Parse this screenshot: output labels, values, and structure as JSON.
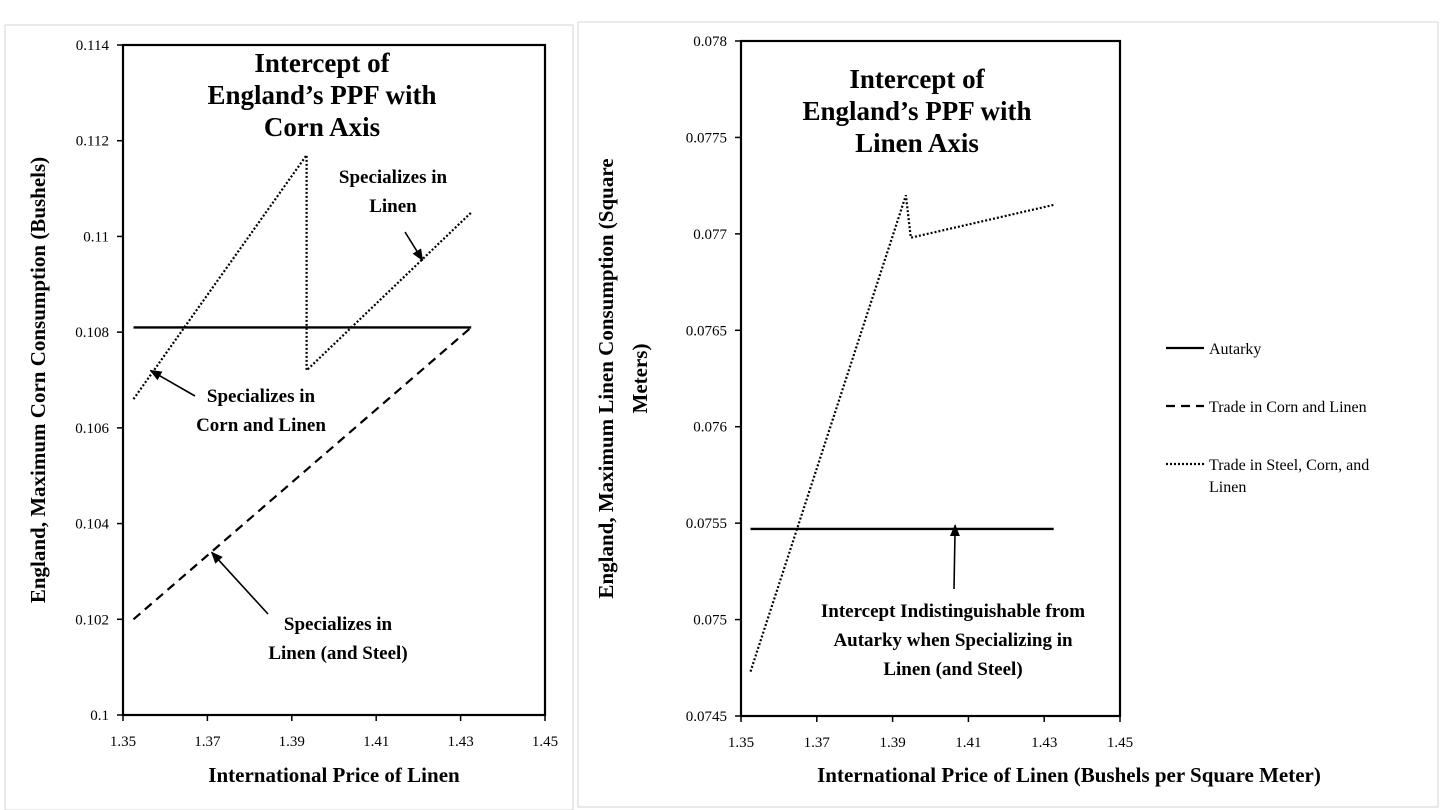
{
  "chart_data": [
    {
      "type": "line",
      "xlabel": "International Price of Linen",
      "ylabel": "England, Maximum Corn Consumption (Bushels)",
      "xlim": [
        1.35,
        1.45
      ],
      "ylim": [
        0.1,
        0.114
      ],
      "x_ticks": [
        "1.35",
        "1.37",
        "1.39",
        "1.41",
        "1.43",
        "1.45"
      ],
      "y_ticks": [
        "0.1",
        "0.102",
        "0.104",
        "0.106",
        "0.108",
        "0.11",
        "0.112",
        "0.114"
      ],
      "grid": false,
      "series": [
        {
          "name": "Autarky",
          "x": [
            1.3525,
            1.4325
          ],
          "y": [
            0.1081,
            0.1081
          ]
        },
        {
          "name": "Trade in Corn and Linen",
          "x": [
            1.3525,
            1.4325
          ],
          "y": [
            0.102,
            0.1081
          ]
        },
        {
          "name": "Trade in Steel, Corn, and Linen",
          "x": [
            1.3525,
            1.3935,
            1.3935,
            1.4325
          ],
          "y": [
            0.1066,
            0.1117,
            0.1072,
            0.1105
          ]
        }
      ],
      "annotations": [
        {
          "lines": [
            "Intercept of",
            "England’s PPF with",
            "Corn Axis"
          ]
        },
        {
          "lines": [
            "Specializes in",
            "Linen"
          ],
          "arrow_to": [
            1.421,
            0.1095
          ]
        },
        {
          "lines": [
            "Specializes in",
            "Corn and Linen"
          ],
          "arrow_to": [
            1.3565,
            0.1072
          ]
        },
        {
          "lines": [
            "Specializes in",
            "Linen (and Steel)"
          ],
          "arrow_to": [
            1.371,
            0.1034
          ]
        }
      ]
    },
    {
      "type": "line",
      "xlabel": "International Price of Linen (Bushels per Square Meter)",
      "ylabel_lines": [
        "England, Maximum Linen Consumption (Square",
        "Meters)"
      ],
      "xlim": [
        1.35,
        1.45
      ],
      "ylim": [
        0.0745,
        0.078
      ],
      "x_ticks": [
        "1.35",
        "1.37",
        "1.39",
        "1.41",
        "1.43",
        "1.45"
      ],
      "y_ticks": [
        "0.0745",
        "0.075",
        "0.0755",
        "0.076",
        "0.0765",
        "0.077",
        "0.0775",
        "0.078"
      ],
      "grid": false,
      "series": [
        {
          "name": "Autarky",
          "x": [
            1.3525,
            1.4325
          ],
          "y": [
            0.07547,
            0.07547
          ]
        },
        {
          "name": "Trade in Steel, Corn, and Linen",
          "x": [
            1.3525,
            1.3935,
            1.3948,
            1.4325
          ],
          "y": [
            0.07473,
            0.0772,
            0.07698,
            0.07715
          ]
        }
      ],
      "annotations": [
        {
          "lines": [
            "Intercept of",
            "England’s PPF with",
            "Linen Axis"
          ]
        },
        {
          "lines": [
            "Intercept Indistinguishable from",
            "Autarky when Specializing in",
            "Linen (and Steel)"
          ],
          "arrow_to": [
            1.4065,
            0.07549
          ]
        }
      ]
    }
  ],
  "legend": {
    "placement": "right",
    "items": [
      {
        "label": "Autarky",
        "dash": "solid"
      },
      {
        "label": "Trade in Corn and Linen",
        "dash": "dashed"
      },
      {
        "label_lines": [
          "Trade in Steel, Corn, and",
          "Linen"
        ],
        "dash": "dotted"
      }
    ]
  }
}
